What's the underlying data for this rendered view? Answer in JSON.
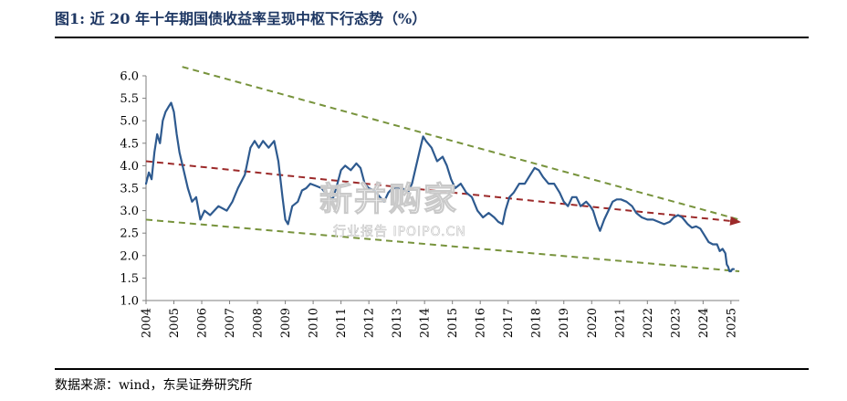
{
  "figure": {
    "title": "图1:  近 20 年十年期国债收益率呈现中枢下行态势（%）",
    "source": "数据来源：wind，东吴证券研究所",
    "watermark": {
      "main": "新并购家",
      "sub": "行业报告 IPOIPO.CN"
    }
  },
  "chart_data": {
    "type": "line",
    "title": "",
    "xlabel": "",
    "ylabel": "",
    "grid": false,
    "legend": "none",
    "ylim": [
      1.0,
      6.0
    ],
    "yticks": [
      "1.0",
      "1.5",
      "2.0",
      "2.5",
      "3.0",
      "3.5",
      "4.0",
      "4.5",
      "5.0",
      "5.5",
      "6.0"
    ],
    "xlim": [
      2004,
      2025.3
    ],
    "xticks": [
      "2004",
      "2005",
      "2006",
      "2007",
      "2008",
      "2009",
      "2010",
      "2011",
      "2012",
      "2013",
      "2014",
      "2015",
      "2016",
      "2017",
      "2018",
      "2019",
      "2020",
      "2021",
      "2022",
      "2023",
      "2024",
      "2025"
    ],
    "series": [
      {
        "color": "#2e5a8f",
        "points": [
          [
            2004.0,
            3.6
          ],
          [
            2004.1,
            3.85
          ],
          [
            2004.2,
            3.7
          ],
          [
            2004.3,
            4.3
          ],
          [
            2004.4,
            4.7
          ],
          [
            2004.5,
            4.5
          ],
          [
            2004.6,
            5.0
          ],
          [
            2004.7,
            5.2
          ],
          [
            2004.8,
            5.3
          ],
          [
            2004.9,
            5.4
          ],
          [
            2005.0,
            5.2
          ],
          [
            2005.1,
            4.7
          ],
          [
            2005.2,
            4.3
          ],
          [
            2005.35,
            3.9
          ],
          [
            2005.5,
            3.5
          ],
          [
            2005.65,
            3.2
          ],
          [
            2005.8,
            3.3
          ],
          [
            2005.95,
            2.8
          ],
          [
            2006.1,
            3.0
          ],
          [
            2006.3,
            2.9
          ],
          [
            2006.6,
            3.1
          ],
          [
            2006.9,
            3.0
          ],
          [
            2007.1,
            3.2
          ],
          [
            2007.3,
            3.5
          ],
          [
            2007.55,
            3.8
          ],
          [
            2007.75,
            4.4
          ],
          [
            2007.9,
            4.55
          ],
          [
            2008.05,
            4.4
          ],
          [
            2008.2,
            4.55
          ],
          [
            2008.4,
            4.4
          ],
          [
            2008.6,
            4.55
          ],
          [
            2008.75,
            4.1
          ],
          [
            2008.9,
            3.3
          ],
          [
            2009.0,
            2.8
          ],
          [
            2009.1,
            2.7
          ],
          [
            2009.25,
            3.1
          ],
          [
            2009.45,
            3.2
          ],
          [
            2009.6,
            3.45
          ],
          [
            2009.75,
            3.5
          ],
          [
            2009.9,
            3.6
          ],
          [
            2010.1,
            3.55
          ],
          [
            2010.3,
            3.5
          ],
          [
            2010.5,
            3.35
          ],
          [
            2010.7,
            3.25
          ],
          [
            2010.85,
            3.55
          ],
          [
            2011.0,
            3.9
          ],
          [
            2011.15,
            4.0
          ],
          [
            2011.35,
            3.9
          ],
          [
            2011.55,
            4.05
          ],
          [
            2011.7,
            3.95
          ],
          [
            2011.85,
            3.6
          ],
          [
            2012.0,
            3.5
          ],
          [
            2012.2,
            3.45
          ],
          [
            2012.4,
            3.3
          ],
          [
            2012.55,
            3.2
          ],
          [
            2012.7,
            3.4
          ],
          [
            2012.85,
            3.5
          ],
          [
            2013.0,
            3.5
          ],
          [
            2013.2,
            3.5
          ],
          [
            2013.4,
            3.4
          ],
          [
            2013.55,
            3.6
          ],
          [
            2013.7,
            4.0
          ],
          [
            2013.85,
            4.4
          ],
          [
            2013.95,
            4.65
          ],
          [
            2014.05,
            4.55
          ],
          [
            2014.25,
            4.4
          ],
          [
            2014.45,
            4.1
          ],
          [
            2014.65,
            4.2
          ],
          [
            2014.8,
            4.0
          ],
          [
            2014.95,
            3.7
          ],
          [
            2015.1,
            3.5
          ],
          [
            2015.3,
            3.6
          ],
          [
            2015.5,
            3.4
          ],
          [
            2015.7,
            3.3
          ],
          [
            2015.9,
            3.0
          ],
          [
            2016.1,
            2.85
          ],
          [
            2016.3,
            2.95
          ],
          [
            2016.5,
            2.85
          ],
          [
            2016.65,
            2.75
          ],
          [
            2016.8,
            2.7
          ],
          [
            2016.9,
            3.0
          ],
          [
            2017.05,
            3.3
          ],
          [
            2017.2,
            3.4
          ],
          [
            2017.4,
            3.6
          ],
          [
            2017.6,
            3.6
          ],
          [
            2017.8,
            3.8
          ],
          [
            2017.95,
            3.95
          ],
          [
            2018.1,
            3.9
          ],
          [
            2018.25,
            3.75
          ],
          [
            2018.45,
            3.6
          ],
          [
            2018.65,
            3.6
          ],
          [
            2018.85,
            3.4
          ],
          [
            2019.0,
            3.2
          ],
          [
            2019.15,
            3.1
          ],
          [
            2019.3,
            3.3
          ],
          [
            2019.45,
            3.3
          ],
          [
            2019.6,
            3.1
          ],
          [
            2019.8,
            3.2
          ],
          [
            2019.95,
            3.1
          ],
          [
            2020.05,
            3.0
          ],
          [
            2020.2,
            2.7
          ],
          [
            2020.3,
            2.55
          ],
          [
            2020.45,
            2.8
          ],
          [
            2020.6,
            3.0
          ],
          [
            2020.75,
            3.2
          ],
          [
            2020.9,
            3.25
          ],
          [
            2021.05,
            3.25
          ],
          [
            2021.25,
            3.2
          ],
          [
            2021.45,
            3.1
          ],
          [
            2021.6,
            2.95
          ],
          [
            2021.8,
            2.85
          ],
          [
            2022.0,
            2.8
          ],
          [
            2022.2,
            2.8
          ],
          [
            2022.4,
            2.75
          ],
          [
            2022.6,
            2.7
          ],
          [
            2022.8,
            2.75
          ],
          [
            2022.95,
            2.85
          ],
          [
            2023.1,
            2.9
          ],
          [
            2023.25,
            2.85
          ],
          [
            2023.45,
            2.7
          ],
          [
            2023.6,
            2.62
          ],
          [
            2023.75,
            2.65
          ],
          [
            2023.9,
            2.6
          ],
          [
            2024.05,
            2.45
          ],
          [
            2024.2,
            2.3
          ],
          [
            2024.35,
            2.25
          ],
          [
            2024.5,
            2.25
          ],
          [
            2024.6,
            2.1
          ],
          [
            2024.7,
            2.15
          ],
          [
            2024.8,
            2.05
          ],
          [
            2024.85,
            1.8
          ],
          [
            2024.9,
            1.75
          ],
          [
            2024.95,
            1.65
          ],
          [
            2025.0,
            1.65
          ],
          [
            2025.05,
            1.7
          ],
          [
            2025.1,
            1.7
          ]
        ]
      }
    ],
    "trend_lines": [
      {
        "style": "dashed",
        "color": "#77933c",
        "from": [
          2005.3,
          6.2
        ],
        "to": [
          2025.3,
          2.8
        ]
      },
      {
        "style": "dashed",
        "color": "#77933c",
        "from": [
          2004.0,
          2.8
        ],
        "to": [
          2025.3,
          1.65
        ]
      },
      {
        "style": "dashed-arrow",
        "color": "#9c2a2a",
        "from": [
          2004.0,
          4.1
        ],
        "to": [
          2025.3,
          2.75
        ]
      }
    ]
  }
}
